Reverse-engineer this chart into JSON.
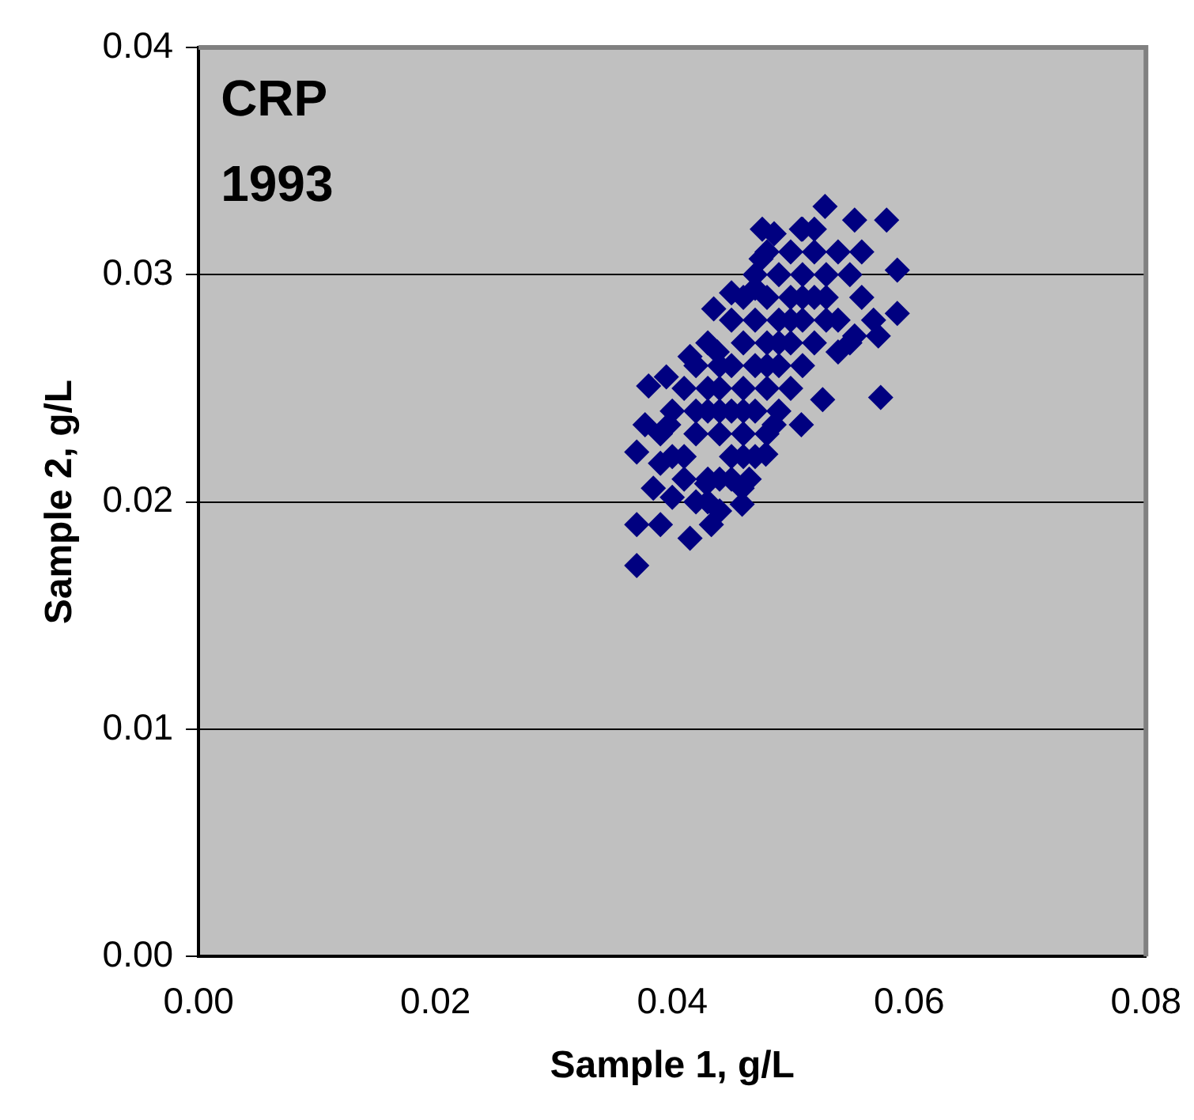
{
  "chart_data": {
    "type": "scatter",
    "title": "CRP",
    "subtitle": "1993",
    "xlabel": "Sample 1, g/L",
    "ylabel": "Sample 2, g/L",
    "xlim": [
      0,
      0.08
    ],
    "xticks": [
      {
        "value": 0,
        "label": "0.00"
      },
      {
        "value": 0.02,
        "label": "0.02"
      },
      {
        "value": 0.04,
        "label": "0.04"
      },
      {
        "value": 0.06,
        "label": "0.06"
      },
      {
        "value": 0.08,
        "label": "0.08"
      }
    ],
    "ylim": [
      0,
      0.04
    ],
    "yticks": [
      {
        "value": 0,
        "label": "0.00"
      },
      {
        "value": 0.01,
        "label": "0.01"
      },
      {
        "value": 0.02,
        "label": "0.02"
      },
      {
        "value": 0.03,
        "label": "0.03"
      },
      {
        "value": 0.04,
        "label": "0.04"
      }
    ],
    "grid": "y",
    "marker": "diamond",
    "legend": false,
    "series": [
      {
        "color": "#000080",
        "x": [
          0.037,
          0.037,
          0.039,
          0.0415,
          0.0433,
          0.044,
          0.0459,
          0.0465,
          0.037,
          0.038,
          0.0395,
          0.0415,
          0.0438,
          0.0435,
          0.045,
          0.047,
          0.0475,
          0.0476,
          0.0486,
          0.0509,
          0.052,
          0.0529,
          0.0554,
          0.0581,
          0.059,
          0.059,
          0.0574,
          0.0554,
          0.0576,
          0.054,
          0.0527,
          0.0509,
          0.0486,
          0.0479,
          0.0459,
          0.0429,
          0.04,
          0.0384,
          0.039,
          0.0377,
          0.0397,
          0.041,
          0.042,
          0.043,
          0.044,
          0.045,
          0.044,
          0.046,
          0.045,
          0.047,
          0.046,
          0.048,
          0.047,
          0.049,
          0.048,
          0.05,
          0.049,
          0.051,
          0.05,
          0.052,
          0.053,
          0.054,
          0.055,
          0.056,
          0.053,
          0.052,
          0.051,
          0.05,
          0.049,
          0.048,
          0.047,
          0.046,
          0.045,
          0.043,
          0.042,
          0.041,
          0.04,
          0.039,
          0.04,
          0.041,
          0.042,
          0.044,
          0.043,
          0.045,
          0.046,
          0.047,
          0.048,
          0.051,
          0.052,
          0.054,
          0.055,
          0.057,
          0.056,
          0.05,
          0.049,
          0.048,
          0.047,
          0.046,
          0.045,
          0.044,
          0.043,
          0.042,
          0.043,
          0.044,
          0.046,
          0.048,
          0.049,
          0.05,
          0.051,
          0.051,
          0.053
        ],
        "values": [
          0.0172,
          0.019,
          0.019,
          0.0184,
          0.019,
          0.0196,
          0.0199,
          0.021,
          0.0222,
          0.0251,
          0.0255,
          0.0264,
          0.0266,
          0.0285,
          0.0292,
          0.0294,
          0.0307,
          0.032,
          0.0318,
          0.032,
          0.032,
          0.033,
          0.0324,
          0.0324,
          0.0302,
          0.0283,
          0.0273,
          0.0273,
          0.0246,
          0.0266,
          0.0245,
          0.0234,
          0.0234,
          0.0221,
          0.0206,
          0.0208,
          0.0202,
          0.0206,
          0.0217,
          0.0234,
          0.0234,
          0.022,
          0.023,
          0.024,
          0.023,
          0.024,
          0.025,
          0.025,
          0.026,
          0.026,
          0.027,
          0.027,
          0.028,
          0.028,
          0.029,
          0.029,
          0.03,
          0.03,
          0.031,
          0.031,
          0.03,
          0.031,
          0.03,
          0.029,
          0.028,
          0.027,
          0.026,
          0.025,
          0.024,
          0.023,
          0.022,
          0.022,
          0.021,
          0.021,
          0.02,
          0.021,
          0.022,
          0.023,
          0.024,
          0.025,
          0.026,
          0.026,
          0.027,
          0.028,
          0.029,
          0.03,
          0.031,
          0.032,
          0.029,
          0.028,
          0.027,
          0.028,
          0.031,
          0.027,
          0.026,
          0.025,
          0.024,
          0.023,
          0.022,
          0.021,
          0.02,
          0.024,
          0.025,
          0.024,
          0.024,
          0.026,
          0.027,
          0.028,
          0.028,
          0.029,
          0.029
        ]
      }
    ]
  }
}
